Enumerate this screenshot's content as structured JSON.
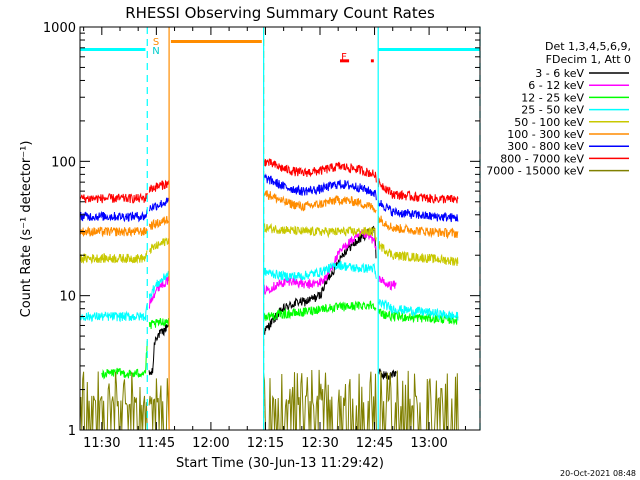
{
  "chart_data": {
    "type": "line",
    "title": "RHESSI Observing Summary Count Rates",
    "xlabel": "Start Time (30-Jun-13 11:29:42)",
    "ylabel": "Count Rate (s⁻¹ detector⁻¹)",
    "yscale": "log",
    "ylim": [
      1,
      1000
    ],
    "xlim": [
      "11:26",
      "13:09"
    ],
    "x_unit": "minutes after 11:30 (30-Jun-13)",
    "x_ticks": [
      {
        "label": "11:30",
        "value": 0
      },
      {
        "label": "11:45",
        "value": 15
      },
      {
        "label": "12:00",
        "value": 30
      },
      {
        "label": "12:15",
        "value": 45
      },
      {
        "label": "12:30",
        "value": 60
      },
      {
        "label": "12:45",
        "value": 75
      },
      {
        "label": "13:00",
        "value": 90
      }
    ],
    "y_ticks": [
      {
        "label": "1",
        "value": 1
      },
      {
        "label": "10",
        "value": 10
      },
      {
        "label": "100",
        "value": 100
      },
      {
        "label": "1000",
        "value": 1000
      }
    ],
    "legend": {
      "placement": "right",
      "header": [
        "Det 1,3,4,5,6,9,",
        "FDecim 1, Att 0"
      ]
    },
    "annotations": {
      "saa_label": "S",
      "night_label": "N",
      "flare_label": "F",
      "timestamp": "20-Oct-2021 08:48"
    },
    "gaps": [
      {
        "from": 12.5,
        "to": 13.0
      },
      {
        "from": 18.5,
        "to": 44.5
      },
      {
        "from": 75.5,
        "to": 76.0
      }
    ],
    "markers": [
      {
        "kind": "saa",
        "x": 12.5,
        "color": "#00ffff",
        "style": "dashed"
      },
      {
        "kind": "night",
        "x": 18.5,
        "color": "#ff8c00",
        "style": "solid"
      },
      {
        "kind": "night",
        "x": 44.5,
        "color": "#ff8c00",
        "style": "dashed"
      },
      {
        "kind": "saa",
        "x": 44.5,
        "color": "#00ffff",
        "style": "solid"
      },
      {
        "kind": "saa",
        "x": 76.0,
        "color": "#00ffff",
        "style": "solid"
      },
      {
        "kind": "saa",
        "x": 104.0,
        "color": "#00ffff",
        "style": "dashed"
      }
    ],
    "bars": [
      {
        "kind": "saa",
        "from": -6.0,
        "to": 12.0,
        "y": 680,
        "color": "#00ffff"
      },
      {
        "kind": "night",
        "from": 19.0,
        "to": 44.0,
        "y": 780,
        "color": "#ff8c00"
      },
      {
        "kind": "saa",
        "from": 76.0,
        "to": 104.0,
        "y": 680,
        "color": "#00ffff"
      },
      {
        "kind": "flare",
        "from": 65.5,
        "to": 68.0,
        "y": 560,
        "color": "#ff0000"
      },
      {
        "kind": "flare",
        "from": 74.0,
        "to": 74.8,
        "y": 560,
        "color": "#ff0000"
      }
    ],
    "series": [
      {
        "name": "3 - 6 keV",
        "color": "#000000",
        "x": [
          13,
          14,
          14.5,
          15,
          16,
          17,
          18,
          45,
          46,
          48,
          50,
          52,
          54,
          56,
          58,
          60,
          62,
          64,
          66,
          68,
          70,
          72,
          74,
          75,
          76,
          77,
          79,
          80,
          81
        ],
        "y": [
          2.6,
          2.7,
          4.5,
          5,
          5.2,
          5.4,
          6,
          5.5,
          6,
          7,
          8,
          8.5,
          9,
          9,
          9.5,
          10,
          13,
          16,
          20,
          23,
          25,
          28,
          30,
          32,
          2.7,
          2.6,
          2.5,
          2.6,
          2.6
        ]
      },
      {
        "name": "6 - 12 keV",
        "color": "#ff00ff",
        "x": [
          13,
          14,
          16,
          18,
          45,
          48,
          52,
          56,
          60,
          62,
          64,
          66,
          68,
          70,
          72,
          74,
          75,
          76,
          78,
          80,
          81
        ],
        "y": [
          8.5,
          10,
          12,
          13,
          11,
          12,
          13,
          12,
          12.5,
          14,
          18,
          22,
          25,
          27,
          29,
          27,
          25,
          14,
          12,
          12,
          12
        ]
      },
      {
        "name": "12 - 25 keV",
        "color": "#00ff00",
        "x": [
          0,
          4,
          8,
          12,
          13,
          16,
          18,
          45,
          50,
          55,
          60,
          65,
          70,
          75,
          76,
          80,
          90,
          98
        ],
        "y": [
          2.6,
          2.7,
          2.6,
          2.7,
          6,
          6.3,
          6.5,
          7,
          7.3,
          7.5,
          8,
          8.2,
          8.4,
          8.6,
          7.5,
          7,
          6.8,
          6.6
        ]
      },
      {
        "name": "25 - 50 keV",
        "color": "#00ffff",
        "x": [
          -6,
          0,
          6,
          12,
          13,
          15,
          17,
          18,
          45,
          50,
          55,
          60,
          65,
          70,
          75,
          76,
          80,
          90,
          98
        ],
        "y": [
          7,
          7,
          7,
          7,
          10,
          12,
          13.5,
          14.5,
          15,
          14,
          14,
          15,
          17,
          16,
          16,
          9,
          8,
          7.5,
          7
        ]
      },
      {
        "name": "50 - 100 keV",
        "color": "#c8c800",
        "x": [
          -6,
          0,
          6,
          12,
          13,
          16,
          18,
          45,
          50,
          55,
          60,
          65,
          70,
          75,
          76,
          80,
          90,
          98
        ],
        "y": [
          19,
          19,
          19,
          19,
          22,
          24,
          26,
          32,
          31,
          30,
          30,
          30,
          30,
          30,
          24,
          20,
          19,
          18
        ]
      },
      {
        "name": "100 - 300 keV",
        "color": "#ff8c00",
        "x": [
          -6,
          0,
          6,
          12,
          13,
          16,
          18,
          45,
          50,
          55,
          60,
          65,
          70,
          75,
          76,
          80,
          90,
          98
        ],
        "y": [
          30,
          30,
          30,
          30,
          33,
          35,
          37,
          58,
          50,
          46,
          48,
          52,
          50,
          45,
          38,
          32,
          30,
          29
        ]
      },
      {
        "name": "300 - 800 keV",
        "color": "#0000ff",
        "x": [
          -6,
          0,
          6,
          12,
          13,
          16,
          18,
          45,
          50,
          55,
          60,
          65,
          70,
          75,
          76,
          80,
          90,
          98
        ],
        "y": [
          39,
          39,
          39,
          39,
          45,
          48,
          50,
          75,
          65,
          60,
          62,
          68,
          65,
          58,
          50,
          42,
          39,
          38
        ]
      },
      {
        "name": "800 - 7000 keV",
        "color": "#ff0000",
        "x": [
          -6,
          0,
          6,
          12,
          13,
          16,
          18,
          45,
          50,
          55,
          60,
          65,
          70,
          75,
          76,
          80,
          90,
          98
        ],
        "y": [
          53,
          53,
          53,
          53,
          62,
          66,
          68,
          100,
          88,
          82,
          85,
          92,
          88,
          80,
          70,
          57,
          53,
          52
        ]
      },
      {
        "name": "7000 - 15000 keV",
        "color": "#808000",
        "x": [
          -6,
          0,
          6,
          12,
          13,
          16,
          18,
          45,
          50,
          55,
          60,
          65,
          70,
          75,
          76,
          80,
          90,
          98
        ],
        "y": [
          1.4,
          1.5,
          1.4,
          1.5,
          1.5,
          1.6,
          1.5,
          1.5,
          1.6,
          1.5,
          1.6,
          1.6,
          1.5,
          1.6,
          1.5,
          1.5,
          1.4,
          1.5
        ]
      }
    ]
  }
}
